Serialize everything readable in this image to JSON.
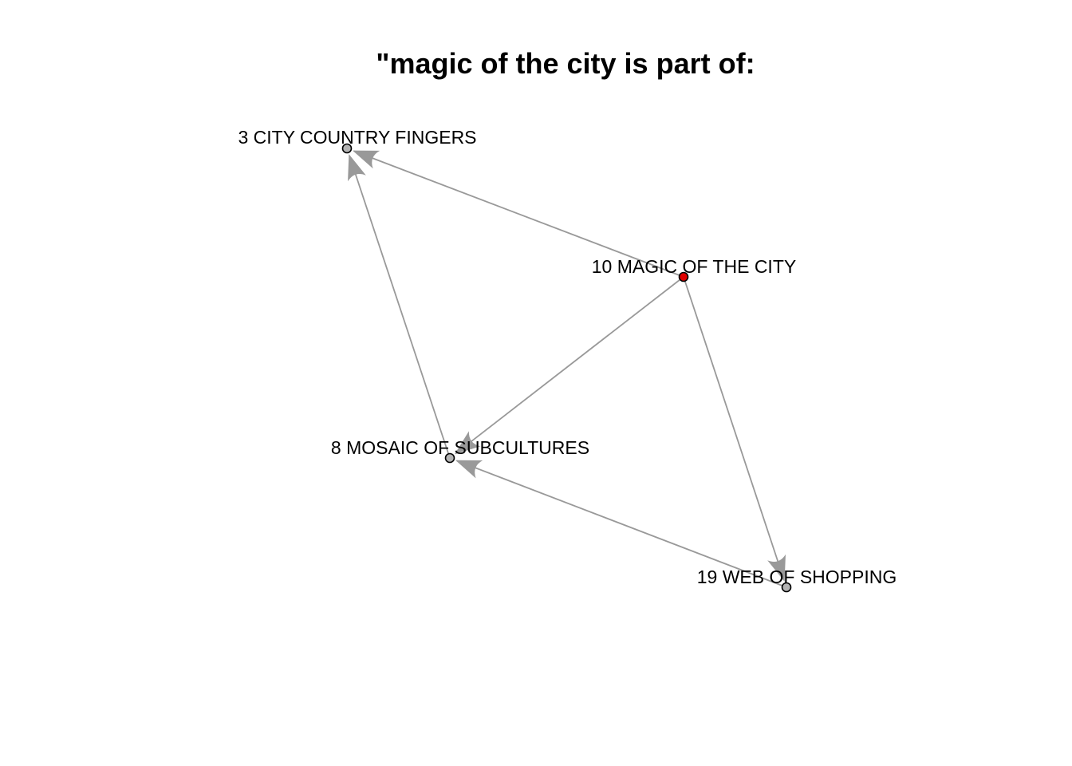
{
  "title": "\"magic of the city is part of:",
  "colors": {
    "edge": "#999999",
    "node_default": "#b3b3b3",
    "node_focus": "#e00000",
    "node_border": "#000000"
  },
  "nodes": [
    {
      "id": "n3",
      "label": "3 CITY COUNTRY FINGERS",
      "focus": false
    },
    {
      "id": "n10",
      "label": "10 MAGIC OF THE CITY",
      "focus": true
    },
    {
      "id": "n8",
      "label": "8 MOSAIC OF SUBCULTURES",
      "focus": false
    },
    {
      "id": "n19",
      "label": "19 WEB OF SHOPPING",
      "focus": false
    }
  ],
  "edges": [
    {
      "from": "n10",
      "to": "n3"
    },
    {
      "from": "n10",
      "to": "n8"
    },
    {
      "from": "n10",
      "to": "n19"
    },
    {
      "from": "n8",
      "to": "n3"
    },
    {
      "from": "n19",
      "to": "n8"
    }
  ]
}
